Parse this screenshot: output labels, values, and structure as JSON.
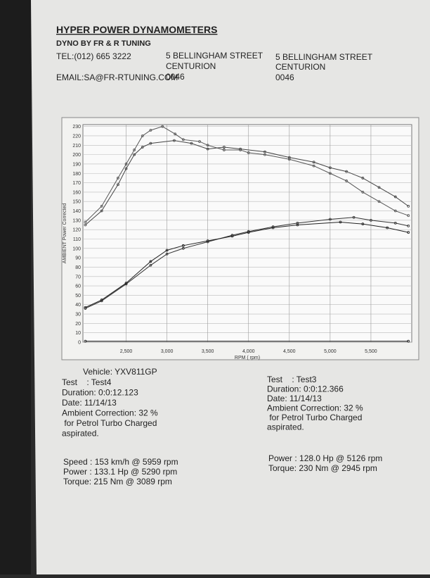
{
  "header": {
    "title": "HYPER POWER DYNAMOMETERS",
    "subtitle": "DYNO BY FR & R TUNING",
    "tel": "TEL:(012) 665 3222",
    "email": "EMAIL:SA@FR-RTUNING.COM",
    "address_1": [
      "5 BELLINGHAM STREET",
      "CENTURION",
      "0046"
    ],
    "address_2": [
      "5 BELLINGHAM STREET",
      "CENTURION",
      "0046"
    ]
  },
  "chart_data": {
    "type": "line",
    "y_label": "AMBIENT Power Corrected",
    "x_label": "RPM ( rpm)",
    "xlim": [
      1970,
      6000
    ],
    "ylim": [
      0,
      232
    ],
    "xticks": [
      {
        "value": 2500,
        "label": "2,500"
      },
      {
        "value": 3000,
        "label": "3,000"
      },
      {
        "value": 3500,
        "label": "3,500"
      },
      {
        "value": 4000,
        "label": "4,000"
      },
      {
        "value": 4500,
        "label": "4,500"
      },
      {
        "value": 5000,
        "label": "5,000"
      },
      {
        "value": 5500,
        "label": "5,500"
      }
    ],
    "yticks": [
      0,
      10,
      20,
      30,
      40,
      50,
      60,
      70,
      80,
      90,
      100,
      110,
      120,
      130,
      140,
      150,
      160,
      170,
      180,
      190,
      200,
      210,
      220,
      230
    ],
    "grid": true,
    "series": [
      {
        "color": "#555555",
        "x": [
          2000,
          2200,
          2400,
          2500,
          2600,
          2700,
          2800,
          2945,
          3100,
          3200,
          3400,
          3500,
          3700,
          3900,
          4000,
          4200,
          4500,
          4800,
          5000,
          5200,
          5400,
          5600,
          5800,
          5959
        ],
        "values": [
          128,
          145,
          175,
          190,
          205,
          220,
          226,
          230,
          222,
          216,
          214,
          210,
          205,
          205,
          202,
          200,
          195,
          188,
          180,
          172,
          160,
          150,
          140,
          135
        ]
      },
      {
        "color": "#444444",
        "x": [
          2000,
          2200,
          2400,
          2500,
          2600,
          2700,
          2800,
          3089,
          3300,
          3500,
          3700,
          3900,
          4200,
          4500,
          4800,
          5000,
          5200,
          5400,
          5600,
          5800,
          5959
        ],
        "values": [
          125,
          140,
          168,
          185,
          200,
          208,
          212,
          215,
          212,
          206,
          208,
          206,
          203,
          197,
          192,
          186,
          182,
          175,
          165,
          155,
          145
        ]
      },
      {
        "color": "#333333",
        "x": [
          2000,
          2200,
          2500,
          2800,
          3000,
          3200,
          3500,
          3800,
          4000,
          4300,
          4600,
          5000,
          5290,
          5500,
          5800,
          5959
        ],
        "values": [
          36,
          44,
          62,
          82,
          94,
          100,
          107,
          114,
          118,
          123,
          127,
          131,
          133.1,
          130,
          127,
          124
        ]
      },
      {
        "color": "#222222",
        "x": [
          2000,
          2200,
          2500,
          2800,
          3000,
          3200,
          3500,
          3800,
          4000,
          4300,
          4600,
          5126,
          5400,
          5700,
          5959
        ],
        "values": [
          37,
          45,
          63,
          86,
          98,
          103,
          108,
          113,
          117,
          122,
          125,
          128,
          126,
          122,
          117
        ]
      },
      {
        "color": "#222222",
        "x": [
          2000,
          5959
        ],
        "values": [
          1,
          1
        ]
      }
    ]
  },
  "vehicle": "Vehicle: YXV811GP",
  "test_a": [
    "Test    : Test4",
    "Duration: 0:0:12.123",
    "Date: 11/14/13",
    "Ambient Correction: 32 %",
    " for Petrol Turbo Charged",
    "aspirated."
  ],
  "test_b": [
    "Test    : Test3",
    "Duration: 0:0:12.366",
    "Date: 11/14/13",
    "Ambient Correction: 32 %",
    " for Petrol Turbo Charged",
    "aspirated."
  ],
  "result_a": [
    "Speed : 153 km/h @ 5959 rpm",
    "Power : 133.1 Hp @ 5290 rpm",
    "Torque: 215 Nm @ 3089 rpm"
  ],
  "result_b": [
    "Power : 128.0 Hp @ 5126 rpm",
    "Torque: 230 Nm @ 2945 rpm"
  ]
}
